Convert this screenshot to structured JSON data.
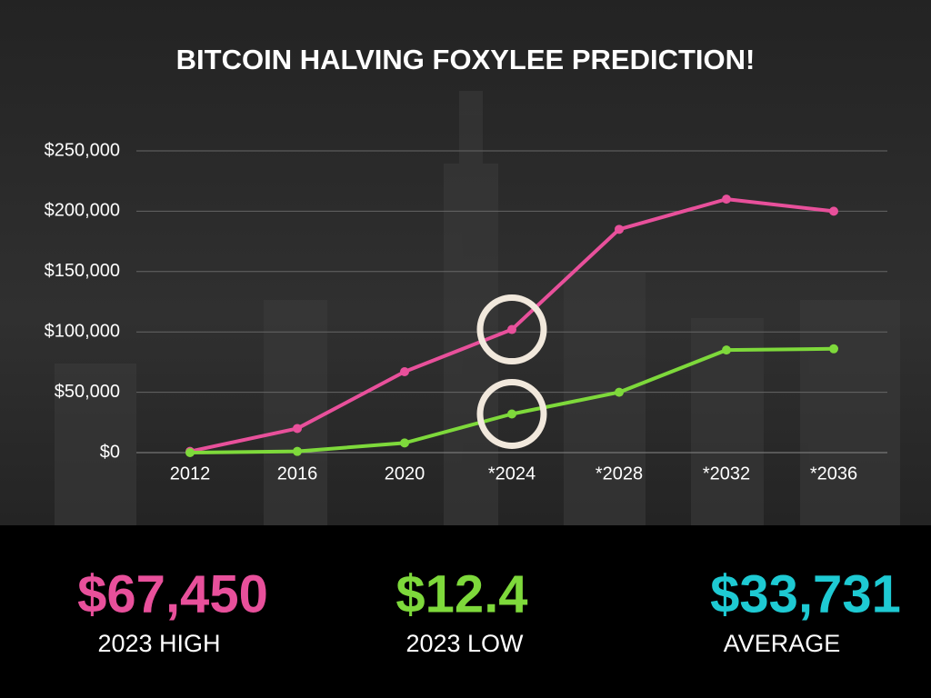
{
  "chart_data": {
    "type": "line",
    "title": "BITCOIN HALVING FOXYLEE PREDICTION!",
    "categories": [
      "2012",
      "2016",
      "2020",
      "*2024",
      "*2028",
      "*2032",
      "*2036"
    ],
    "series": [
      {
        "color": "#e8509b",
        "values": [
          1000,
          20000,
          67000,
          102000,
          185000,
          210000,
          200000
        ]
      },
      {
        "color": "#7ed93b",
        "values": [
          0,
          1000,
          8000,
          32000,
          50000,
          85000,
          86000
        ]
      }
    ],
    "ylim": [
      0,
      250000
    ],
    "yticks": [
      {
        "value": 0,
        "label": "$0"
      },
      {
        "value": 50000,
        "label": "$50,000"
      },
      {
        "value": 100000,
        "label": "$100,000"
      },
      {
        "value": 150000,
        "label": "$150,000"
      },
      {
        "value": 200000,
        "label": "$200,000"
      },
      {
        "value": 250000,
        "label": "$250,000"
      }
    ],
    "grid": true
  },
  "stats": [
    {
      "value": "$67,450",
      "label": "2023 HIGH",
      "color": "#e8509b"
    },
    {
      "value": "$12.4",
      "label": "2023 LOW",
      "color": "#7ed93b"
    },
    {
      "value": "$33,731",
      "label": "AVERAGE",
      "color": "#1ecad3"
    }
  ]
}
